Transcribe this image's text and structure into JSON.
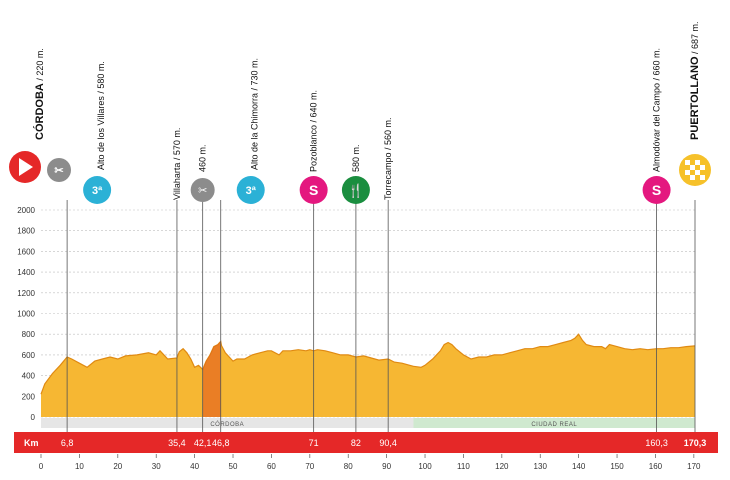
{
  "chart_data": {
    "type": "area",
    "title": "",
    "xlabel": "",
    "ylabel": "",
    "xlim": [
      0,
      170.3
    ],
    "ylim": [
      0,
      2000
    ],
    "y_ticks": [
      0,
      200,
      400,
      600,
      800,
      1000,
      1200,
      1400,
      1600,
      1800,
      2000
    ],
    "x_ticks": [
      0,
      10,
      20,
      30,
      40,
      50,
      60,
      70,
      80,
      90,
      100,
      110,
      120,
      130,
      140,
      150,
      160,
      170
    ],
    "grid": true,
    "colors": {
      "profile_fill": "#f6b733",
      "profile_stroke": "#e08a12",
      "km_bar": "#e52828",
      "grid": "#bfbfbf",
      "sprint": "#e4187f",
      "climb": "#2bb1d6",
      "feed": "#1a8e3f",
      "start": "#e52828",
      "finish": "#f6c12a",
      "feedzone_shade": "#e0501a"
    },
    "series": [
      {
        "x": [
          0,
          1,
          3,
          5,
          6.8,
          8,
          10,
          12,
          14,
          16,
          18,
          20,
          22,
          25,
          28,
          30,
          31,
          32,
          33,
          35.4,
          36,
          37,
          38,
          39,
          40,
          41,
          42.1,
          43,
          44,
          45,
          46,
          46.8,
          47,
          48,
          49,
          50,
          51,
          53,
          55,
          57,
          59,
          60,
          62,
          63,
          65,
          67,
          69,
          70,
          71,
          72,
          74,
          76,
          78,
          80,
          82,
          84,
          86,
          88,
          90.4,
          92,
          94,
          96,
          97,
          99,
          100,
          102,
          104,
          105,
          106,
          107,
          108,
          110,
          112,
          114,
          116,
          118,
          120,
          122,
          124,
          126,
          128,
          130,
          132,
          134,
          136,
          138,
          139,
          140,
          141,
          142,
          144,
          146,
          147,
          148,
          150,
          152,
          154,
          156,
          158,
          160.3,
          162,
          164,
          166,
          168,
          170.3
        ],
        "y": [
          220,
          320,
          420,
          500,
          580,
          560,
          520,
          480,
          540,
          560,
          580,
          560,
          590,
          600,
          620,
          600,
          640,
          600,
          560,
          570,
          630,
          660,
          620,
          560,
          480,
          500,
          460,
          540,
          600,
          680,
          700,
          730,
          690,
          620,
          580,
          540,
          560,
          560,
          600,
          620,
          640,
          640,
          600,
          640,
          640,
          650,
          640,
          650,
          640,
          650,
          640,
          620,
          600,
          600,
          580,
          590,
          570,
          550,
          560,
          530,
          520,
          500,
          490,
          480,
          500,
          560,
          640,
          700,
          720,
          700,
          660,
          600,
          560,
          580,
          580,
          600,
          600,
          620,
          640,
          660,
          660,
          680,
          680,
          700,
          720,
          740,
          760,
          800,
          740,
          700,
          680,
          680,
          660,
          700,
          680,
          660,
          650,
          660,
          650,
          660,
          660,
          670,
          670,
          680,
          687
        ]
      }
    ],
    "km_markers": [
      "6,8",
      "35,4",
      "42,1",
      "46,8",
      "71",
      "82",
      "90,4",
      "160,3",
      "170,3"
    ],
    "km_label": "Km",
    "regions": [
      {
        "label": "CÓRDOBA",
        "from": 0,
        "to": 97
      },
      {
        "label": "CIUDAD REAL",
        "from": 97,
        "to": 170.3
      }
    ],
    "feed_zone": {
      "from": 42.1,
      "to": 46.8
    },
    "checkpoints": [
      {
        "km": 0,
        "kind": "start",
        "name": "CÓRDOBA",
        "alt": " / 220 m.",
        "bold": true
      },
      {
        "km": 6.8,
        "kind": "climb3",
        "name": "Alto de los Villares",
        "alt": " / 580 m.",
        "bold": false,
        "badge": "3ª"
      },
      {
        "km": 35.4,
        "kind": "none",
        "name": "Villaharta",
        "alt": " / 570 m.",
        "bold": false
      },
      {
        "km": 42.1,
        "kind": "feedbag",
        "name": "460 m.",
        "alt": "",
        "bold": false
      },
      {
        "km": 46.8,
        "kind": "climb3",
        "name": "Alto de la Chimorra",
        "alt": " / 730 m.",
        "bold": false,
        "badge": "3ª"
      },
      {
        "km": 71,
        "kind": "sprint",
        "name": "Pozoblanco",
        "alt": " / 640 m.",
        "bold": false,
        "badge": "S"
      },
      {
        "km": 82,
        "kind": "feed",
        "name": "580 m.",
        "alt": "",
        "bold": false
      },
      {
        "km": 90.4,
        "kind": "none",
        "name": "Torrecampo",
        "alt": " / 560 m.",
        "bold": false
      },
      {
        "km": 160.3,
        "kind": "sprint",
        "name": "Almodóvar del Campo",
        "alt": " / 660 m.",
        "bold": false,
        "badge": "S"
      },
      {
        "km": 170.3,
        "kind": "finish",
        "name": "PUERTOLLANO",
        "alt": " / 687 m.",
        "bold": true
      }
    ]
  }
}
